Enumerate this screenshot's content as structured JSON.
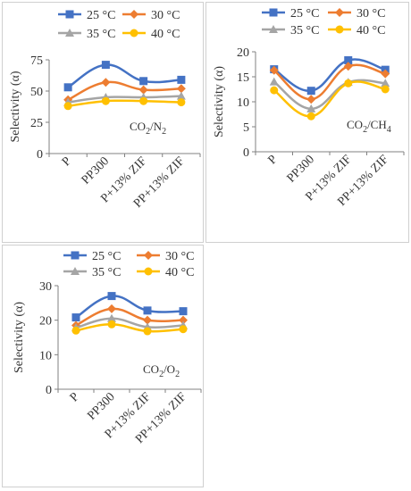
{
  "chart_data": [
    {
      "type": "line",
      "categories": [
        "P",
        "PP300",
        "P+13% ZIF",
        "PP+13% ZIF"
      ],
      "ylabel": "Selectivity (α)",
      "annotation": {
        "main": "CO",
        "sub": "2",
        "rest": "/N",
        "sub2": "2"
      },
      "ylim": [
        0,
        75
      ],
      "yticks": [
        0,
        25,
        50,
        75
      ],
      "series": [
        {
          "name": "25 °C",
          "color": "#4472C4",
          "marker": "square",
          "values": [
            53,
            71,
            58,
            59
          ]
        },
        {
          "name": "30 °C",
          "color": "#ED7D31",
          "marker": "diamond",
          "values": [
            43,
            57,
            51,
            52
          ]
        },
        {
          "name": "35 °C",
          "color": "#A5A5A5",
          "marker": "triangle",
          "values": [
            41,
            45,
            45,
            46
          ]
        },
        {
          "name": "40 °C",
          "color": "#FFC000",
          "marker": "circle",
          "values": [
            38,
            42,
            42,
            41
          ]
        }
      ]
    },
    {
      "type": "line",
      "categories": [
        "P",
        "PP300",
        "P+13% ZIF",
        "PP+13% ZIF"
      ],
      "ylabel": "Selectivity (α)",
      "annotation": {
        "main": "CO",
        "sub": "2",
        "rest": "/CH",
        "sub2": "4"
      },
      "ylim": [
        0,
        20
      ],
      "yticks": [
        0,
        5,
        10,
        15,
        20
      ],
      "series": [
        {
          "name": "25 °C",
          "color": "#4472C4",
          "marker": "square",
          "values": [
            16.5,
            12.2,
            18.3,
            16.4
          ]
        },
        {
          "name": "30 °C",
          "color": "#ED7D31",
          "marker": "diamond",
          "values": [
            16.3,
            10.5,
            17.1,
            15.6
          ]
        },
        {
          "name": "35 °C",
          "color": "#A5A5A5",
          "marker": "triangle",
          "values": [
            14.0,
            8.6,
            13.9,
            13.7
          ]
        },
        {
          "name": "40 °C",
          "color": "#FFC000",
          "marker": "circle",
          "values": [
            12.3,
            7.1,
            13.7,
            12.5
          ]
        }
      ]
    },
    {
      "type": "line",
      "categories": [
        "P",
        "PP300",
        "P+13% ZIF",
        "PP+13% ZIF"
      ],
      "ylabel": "Selectivity (α)",
      "annotation": {
        "main": "CO",
        "sub": "2",
        "rest": "/O",
        "sub2": "2"
      },
      "ylim": [
        0,
        30
      ],
      "yticks": [
        0,
        10,
        20,
        30
      ],
      "series": [
        {
          "name": "25 °C",
          "color": "#4472C4",
          "marker": "square",
          "values": [
            20.8,
            27.0,
            22.8,
            22.6
          ]
        },
        {
          "name": "30 °C",
          "color": "#ED7D31",
          "marker": "diamond",
          "values": [
            18.5,
            23.3,
            20.0,
            20.0
          ]
        },
        {
          "name": "35 °C",
          "color": "#A5A5A5",
          "marker": "triangle",
          "values": [
            17.8,
            20.5,
            18.0,
            18.5
          ]
        },
        {
          "name": "40 °C",
          "color": "#FFC000",
          "marker": "circle",
          "values": [
            17.0,
            18.8,
            16.8,
            17.4
          ]
        }
      ]
    }
  ]
}
